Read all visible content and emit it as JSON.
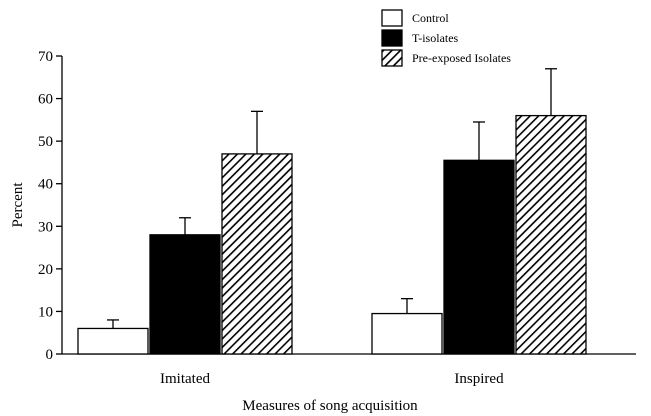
{
  "chart_data": {
    "type": "bar",
    "categories": [
      "Imitated",
      "Inspired"
    ],
    "series": [
      {
        "name": "Control",
        "values": [
          6,
          9.5
        ],
        "errors": [
          2,
          3.5
        ],
        "pattern": "white"
      },
      {
        "name": "T-isolates",
        "values": [
          28,
          45.5
        ],
        "errors": [
          4,
          9
        ],
        "pattern": "black"
      },
      {
        "name": "Pre-exposed Isolates",
        "values": [
          47,
          56
        ],
        "errors": [
          10,
          11
        ],
        "pattern": "hatch"
      }
    ],
    "xlabel": "Measures of song acquisition",
    "ylabel": "Percent",
    "ylim": [
      0,
      70
    ],
    "yticks": [
      0,
      10,
      20,
      30,
      40,
      50,
      60,
      70
    ],
    "grid": false,
    "legend_position": "top-right"
  }
}
